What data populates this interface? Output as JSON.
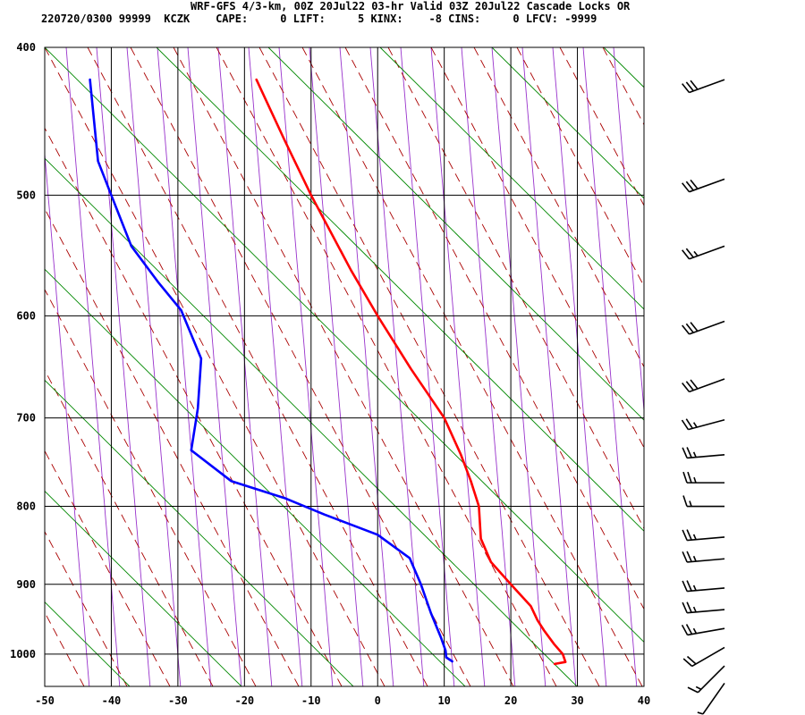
{
  "header": {
    "title": "WRF-GFS 4/3-km, 00Z 20Jul22 03-hr Valid 03Z 20Jul22 Cascade Locks OR",
    "stats": "220720/0300 99999  KCZK    CAPE:     0 LIFT:     5 KINX:    -8 CINS:     0 LFCV: -9999"
  },
  "chart_data": {
    "type": "line",
    "title": "WRF-GFS 4/3-km, 00Z 20Jul22 03-hr Valid 03Z 20Jul22 Cascade Locks OR",
    "xlabel": "",
    "ylabel": "",
    "xlim": [
      -50,
      40
    ],
    "ylim_pressure": [
      1050,
      400
    ],
    "x_ticks": [
      -50,
      -40,
      -30,
      -20,
      -10,
      0,
      10,
      20,
      30,
      40
    ],
    "p_ticks": [
      400,
      500,
      600,
      700,
      800,
      900,
      1000
    ],
    "grid": true,
    "series": [
      {
        "color": "#ff0000",
        "points": [
          [
            -18.2,
            420
          ],
          [
            -14,
            460
          ],
          [
            -10,
            500
          ],
          [
            -4,
            560
          ],
          [
            0,
            600
          ],
          [
            5,
            650
          ],
          [
            10,
            700
          ],
          [
            12.5,
            740
          ],
          [
            14,
            770
          ],
          [
            15.2,
            800
          ],
          [
            15.5,
            840
          ],
          [
            17,
            870
          ],
          [
            20,
            900
          ],
          [
            23,
            930
          ],
          [
            24,
            950
          ],
          [
            25,
            965
          ],
          [
            26.5,
            985
          ],
          [
            27.8,
            1000
          ],
          [
            28.2,
            1012
          ],
          [
            26.6,
            1015
          ]
        ]
      },
      {
        "color": "#0000ff",
        "points": [
          [
            -43.2,
            420
          ],
          [
            -42,
            475
          ],
          [
            -40,
            500
          ],
          [
            -37,
            540
          ],
          [
            -33,
            570
          ],
          [
            -29.5,
            595
          ],
          [
            -26.5,
            640
          ],
          [
            -27,
            690
          ],
          [
            -28,
            735
          ],
          [
            -22,
            770
          ],
          [
            -14,
            790
          ],
          [
            -8,
            810
          ],
          [
            0,
            835
          ],
          [
            4.8,
            865
          ],
          [
            6.5,
            900
          ],
          [
            8,
            940
          ],
          [
            9.5,
            975
          ],
          [
            10.2,
            995
          ],
          [
            10.3,
            1005
          ],
          [
            11.2,
            1011
          ]
        ]
      }
    ],
    "wind_barbs": [
      {
        "p": 420,
        "dir": 250,
        "spd": 30
      },
      {
        "p": 488,
        "dir": 250,
        "spd": 30
      },
      {
        "p": 540,
        "dir": 250,
        "spd": 25
      },
      {
        "p": 605,
        "dir": 250,
        "spd": 30
      },
      {
        "p": 660,
        "dir": 250,
        "spd": 30
      },
      {
        "p": 702,
        "dir": 255,
        "spd": 25
      },
      {
        "p": 740,
        "dir": 265,
        "spd": 25
      },
      {
        "p": 772,
        "dir": 270,
        "spd": 25
      },
      {
        "p": 800,
        "dir": 270,
        "spd": 15
      },
      {
        "p": 838,
        "dir": 265,
        "spd": 25
      },
      {
        "p": 866,
        "dir": 265,
        "spd": 25
      },
      {
        "p": 905,
        "dir": 265,
        "spd": 25
      },
      {
        "p": 935,
        "dir": 265,
        "spd": 25
      },
      {
        "p": 962,
        "dir": 260,
        "spd": 25
      },
      {
        "p": 990,
        "dir": 240,
        "spd": 20
      },
      {
        "p": 1018,
        "dir": 225,
        "spd": 15
      },
      {
        "p": 1045,
        "dir": 215,
        "spd": 5
      }
    ]
  }
}
